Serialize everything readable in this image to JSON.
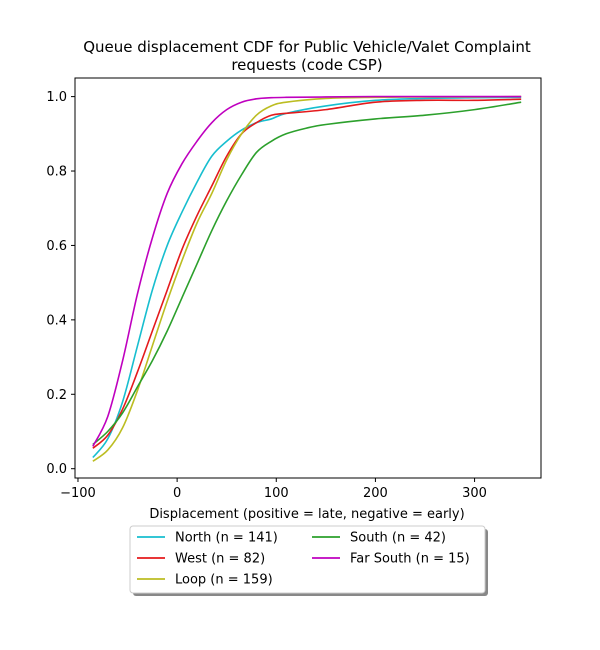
{
  "chart_data": {
    "type": "line",
    "title_lines": [
      "Queue displacement CDF for Public Vehicle/Valet Complaint",
      "requests (code CSP)"
    ],
    "xlabel": "Displacement (positive = late, negative = early)",
    "ylabel": "",
    "xlim": [
      -103,
      367
    ],
    "ylim": [
      -0.025,
      1.05
    ],
    "xticks": [
      -100,
      0,
      100,
      200,
      300
    ],
    "xtick_labels": [
      "−100",
      "0",
      "100",
      "200",
      "300"
    ],
    "yticks": [
      0.0,
      0.2,
      0.4,
      0.6,
      0.8,
      1.0
    ],
    "ytick_labels": [
      "0.0",
      "0.2",
      "0.4",
      "0.6",
      "0.8",
      "1.0"
    ],
    "grid": false,
    "legend_position": "below plot, two columns",
    "series": [
      {
        "name": "North (n = 141)",
        "color": "#17becf",
        "x": [
          -85,
          -70,
          -55,
          -40,
          -25,
          -10,
          5,
          20,
          35,
          50,
          65,
          80,
          95,
          110,
          150,
          200,
          250,
          300,
          347
        ],
        "y": [
          0.03,
          0.08,
          0.18,
          0.33,
          0.48,
          0.6,
          0.69,
          0.77,
          0.84,
          0.88,
          0.91,
          0.93,
          0.94,
          0.955,
          0.975,
          0.99,
          0.995,
          0.997,
          0.998
        ]
      },
      {
        "name": "West (n = 82)",
        "color": "#e41a1c",
        "x": [
          -85,
          -70,
          -55,
          -40,
          -25,
          -10,
          5,
          20,
          35,
          50,
          65,
          80,
          95,
          110,
          150,
          200,
          250,
          300,
          347
        ],
        "y": [
          0.055,
          0.09,
          0.16,
          0.26,
          0.37,
          0.48,
          0.59,
          0.68,
          0.76,
          0.84,
          0.9,
          0.93,
          0.95,
          0.955,
          0.965,
          0.985,
          0.99,
          0.99,
          0.993
        ]
      },
      {
        "name": "Loop (n = 159)",
        "color": "#bcbd22",
        "x": [
          -85,
          -70,
          -55,
          -40,
          -25,
          -10,
          5,
          20,
          35,
          50,
          65,
          80,
          95,
          110,
          150,
          200,
          250,
          300,
          347
        ],
        "y": [
          0.02,
          0.05,
          0.11,
          0.21,
          0.33,
          0.45,
          0.56,
          0.66,
          0.74,
          0.83,
          0.9,
          0.95,
          0.975,
          0.985,
          0.995,
          0.998,
          0.999,
          0.999,
          1.0
        ]
      },
      {
        "name": "South (n = 42)",
        "color": "#2ca02c",
        "x": [
          -85,
          -70,
          -55,
          -40,
          -25,
          -10,
          5,
          20,
          35,
          50,
          65,
          80,
          95,
          110,
          130,
          150,
          200,
          250,
          300,
          347
        ],
        "y": [
          0.065,
          0.1,
          0.15,
          0.22,
          0.29,
          0.37,
          0.46,
          0.55,
          0.64,
          0.72,
          0.79,
          0.85,
          0.88,
          0.9,
          0.915,
          0.925,
          0.94,
          0.95,
          0.965,
          0.985
        ]
      },
      {
        "name": "Far South (n = 15)",
        "color": "#bf00bf",
        "x": [
          -85,
          -70,
          -55,
          -40,
          -25,
          -10,
          5,
          20,
          35,
          50,
          65,
          80,
          95,
          110,
          150,
          200,
          250,
          300,
          347
        ],
        "y": [
          0.06,
          0.14,
          0.29,
          0.47,
          0.62,
          0.74,
          0.82,
          0.88,
          0.93,
          0.965,
          0.985,
          0.994,
          0.997,
          0.998,
          0.999,
          1.0,
          1.0,
          1.0,
          1.0
        ]
      }
    ]
  }
}
